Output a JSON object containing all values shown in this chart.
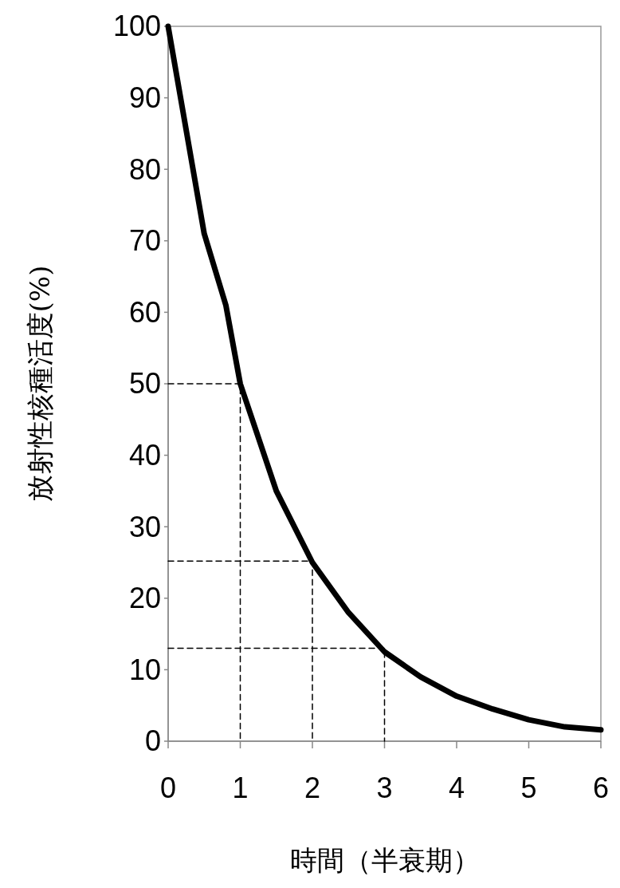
{
  "chart_data": {
    "type": "line",
    "xlabel": "時間（半衰期）",
    "ylabel": "放射性核種活度(%)",
    "xlim": [
      0,
      6
    ],
    "ylim": [
      0,
      100
    ],
    "xticks": [
      0,
      1,
      2,
      3,
      4,
      5,
      6
    ],
    "yticks": [
      0,
      10,
      20,
      30,
      40,
      50,
      60,
      70,
      80,
      90,
      100
    ],
    "grid": false,
    "series": [
      {
        "color": "#000000",
        "x": [
          0,
          0.5,
          0.8,
          1,
          1.5,
          2,
          2.5,
          3,
          3.5,
          4,
          4.5,
          5,
          5.5,
          6
        ],
        "values": [
          100,
          71,
          61,
          50,
          35,
          25,
          18,
          12.5,
          9,
          6.3,
          4.5,
          3,
          2,
          1.6
        ]
      },
      {
        "color": "#000000",
        "line_style": "dashed",
        "x": [
          0,
          1,
          1
        ],
        "values": [
          50,
          50,
          0
        ]
      },
      {
        "color": "#000000",
        "line_style": "dashed",
        "x": [
          0,
          2,
          2
        ],
        "values": [
          25.2,
          25.2,
          0
        ]
      },
      {
        "color": "#000000",
        "line_style": "dashed",
        "x": [
          0,
          3,
          3
        ],
        "values": [
          13,
          13,
          0
        ]
      }
    ]
  }
}
